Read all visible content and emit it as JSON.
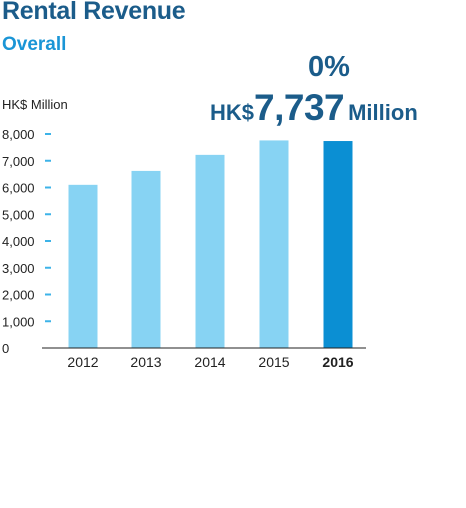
{
  "header": {
    "title": "Rental Revenue",
    "subtitle": "Overall"
  },
  "highlight": {
    "change": "0%",
    "prefix": "HK$",
    "value": "7,737",
    "suffix": "Million"
  },
  "colors": {
    "title": "#1b5c8a",
    "subtitle": "#1a95d6",
    "bar_light": "#87d3f3",
    "bar_highlight": "#0b8fd3",
    "tick": "#3db3e8"
  },
  "chart_data": {
    "type": "bar",
    "title": "Rental Revenue",
    "subtitle": "Overall",
    "ylabel": "HK$ Million",
    "xlabel": "",
    "categories": [
      "2012",
      "2013",
      "2014",
      "2015",
      "2016"
    ],
    "values": [
      6100,
      6620,
      7220,
      7760,
      7737
    ],
    "highlight_category": "2016",
    "ylim": [
      0,
      8000
    ],
    "yticks": [
      "0",
      "1,000",
      "2,000",
      "3,000",
      "4,000",
      "5,000",
      "6,000",
      "7,000",
      "8,000"
    ],
    "ytick_values": [
      0,
      1000,
      2000,
      3000,
      4000,
      5000,
      6000,
      7000,
      8000
    ],
    "grid": false,
    "legend": "none"
  }
}
